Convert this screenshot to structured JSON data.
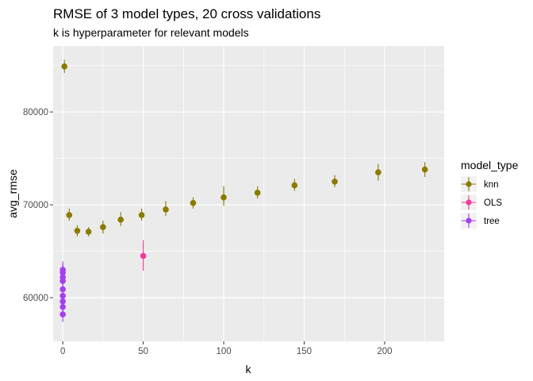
{
  "chart_data": {
    "type": "scatter",
    "title": "RMSE of 3 model types, 20 cross validations",
    "subtitle": "k is hyperparameter for relevant models",
    "xlabel": "k",
    "ylabel": "avg_rmse",
    "xlim": [
      -6,
      237
    ],
    "ylim": [
      55300,
      87100
    ],
    "x_ticks": [
      0,
      50,
      100,
      150,
      200
    ],
    "y_ticks": [
      60000,
      70000,
      80000
    ],
    "y_tick_labels": [
      "60000",
      "70000",
      "80000"
    ],
    "x_minor_ticks": [
      25,
      75,
      125,
      175,
      225
    ],
    "y_minor_ticks": [
      55000,
      65000,
      75000,
      85000
    ],
    "grid": true,
    "legend": {
      "title": "model_type",
      "position": "right"
    },
    "error_bars": true,
    "series": [
      {
        "name": "knn",
        "color": "#8b7a00",
        "points": [
          {
            "x": 1,
            "y": 84900,
            "ymin": 84200,
            "ymax": 85600
          },
          {
            "x": 4,
            "y": 68900,
            "ymin": 68300,
            "ymax": 69600
          },
          {
            "x": 9,
            "y": 67200,
            "ymin": 66600,
            "ymax": 67800
          },
          {
            "x": 16,
            "y": 67100,
            "ymin": 66600,
            "ymax": 67600
          },
          {
            "x": 25,
            "y": 67600,
            "ymin": 66900,
            "ymax": 68300
          },
          {
            "x": 36,
            "y": 68400,
            "ymin": 67700,
            "ymax": 69200
          },
          {
            "x": 49,
            "y": 68900,
            "ymin": 68300,
            "ymax": 69600
          },
          {
            "x": 64,
            "y": 69500,
            "ymin": 68800,
            "ymax": 70400
          },
          {
            "x": 81,
            "y": 70200,
            "ymin": 69600,
            "ymax": 70800
          },
          {
            "x": 100,
            "y": 70800,
            "ymin": 69900,
            "ymax": 72000
          },
          {
            "x": 121,
            "y": 71300,
            "ymin": 70700,
            "ymax": 72000
          },
          {
            "x": 144,
            "y": 72100,
            "ymin": 71500,
            "ymax": 72800
          },
          {
            "x": 169,
            "y": 72500,
            "ymin": 71900,
            "ymax": 73200
          },
          {
            "x": 196,
            "y": 73500,
            "ymin": 72600,
            "ymax": 74400
          },
          {
            "x": 225,
            "y": 73800,
            "ymin": 73000,
            "ymax": 74600
          }
        ]
      },
      {
        "name": "OLS",
        "color": "#f03c9b",
        "points": [
          {
            "x": 50,
            "y": 64500,
            "ymin": 62900,
            "ymax": 66200
          }
        ]
      },
      {
        "name": "tree",
        "color": "#a63ff0",
        "points": [
          {
            "x": 0,
            "y": 58200,
            "ymin": 57400,
            "ymax": 59000
          },
          {
            "x": 0,
            "y": 59000,
            "ymin": 58300,
            "ymax": 59700
          },
          {
            "x": 0,
            "y": 59600,
            "ymin": 58900,
            "ymax": 60300
          },
          {
            "x": 0,
            "y": 60200,
            "ymin": 59500,
            "ymax": 60900
          },
          {
            "x": 0,
            "y": 60900,
            "ymin": 60200,
            "ymax": 61600
          },
          {
            "x": 0,
            "y": 61800,
            "ymin": 61100,
            "ymax": 62500
          },
          {
            "x": 0,
            "y": 62200,
            "ymin": 61500,
            "ymax": 63000
          },
          {
            "x": 0,
            "y": 62700,
            "ymin": 62000,
            "ymax": 63600
          },
          {
            "x": 0,
            "y": 63000,
            "ymin": 62200,
            "ymax": 63900
          }
        ]
      }
    ]
  }
}
